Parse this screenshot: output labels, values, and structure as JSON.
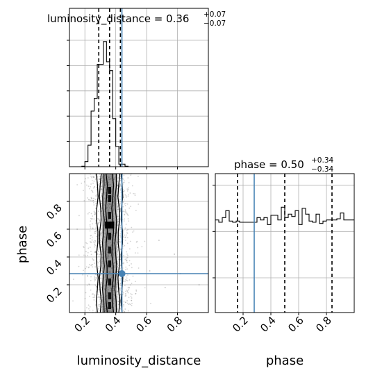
{
  "chart_data": [
    {
      "type": "histogram",
      "panel": "luminosity_distance marginal",
      "title": {
        "main": "luminosity_distance = 0.36",
        "sup": "+0.07",
        "sub": "−0.07"
      },
      "x_range": [
        0.1,
        1.0
      ],
      "bin_edges": [
        0.1,
        0.12,
        0.14,
        0.16,
        0.18,
        0.2,
        0.22,
        0.24,
        0.26,
        0.28,
        0.3,
        0.32,
        0.34,
        0.36,
        0.38,
        0.4,
        0.42,
        0.44,
        0.46,
        0.48,
        0.5,
        0.52,
        0.54,
        0.56,
        0.58,
        0.6,
        0.62,
        0.64,
        0.66,
        0.68,
        0.7,
        0.72,
        0.74,
        0.76,
        0.78,
        0.8,
        0.82,
        0.84,
        0.86,
        0.88,
        0.9,
        0.92,
        0.94,
        0.96,
        0.98,
        1.0
      ],
      "counts": [
        0,
        0,
        0,
        0,
        0.004,
        0.04,
        0.17,
        0.44,
        0.54,
        0.81,
        0.81,
        0.99,
        0.83,
        0.76,
        0.38,
        0.16,
        0.02,
        0.02,
        0.004,
        0,
        0,
        0,
        0,
        0,
        0,
        0,
        0,
        0,
        0,
        0,
        0,
        0,
        0,
        0,
        0,
        0,
        0,
        0,
        0,
        0,
        0,
        0,
        0,
        0,
        0
      ],
      "quantiles": [
        0.29,
        0.36,
        0.43
      ],
      "truth": 0.44,
      "y_ticks_count": 5,
      "x_ticks": [
        0.2,
        0.4,
        0.6,
        0.8
      ],
      "grid": true
    },
    {
      "type": "scatter_density",
      "panel": "phase vs luminosity_distance",
      "x": "luminosity_distance",
      "y": "phase",
      "x_range": [
        0.1,
        1.0
      ],
      "y_range": [
        0.0,
        1.0
      ],
      "x_ticks": [
        0.2,
        0.4,
        0.6,
        0.8
      ],
      "y_ticks": [
        0.2,
        0.4,
        0.6,
        0.8
      ],
      "x_tick_labels": [
        "0.2",
        "0.4",
        "0.6",
        "0.8"
      ],
      "y_tick_labels": [
        "0.2",
        "0.4",
        "0.6",
        "0.8"
      ],
      "xlabel": "luminosity_distance",
      "ylabel": "phase",
      "truth": {
        "x": 0.44,
        "y": 0.28
      },
      "density_cells": [
        {
          "x": 0.36,
          "y": 0.63,
          "level": 1.0
        },
        {
          "x": 0.34,
          "y": 0.63,
          "level": 0.95
        },
        {
          "x": 0.38,
          "y": 0.63,
          "level": 0.9
        },
        {
          "x": 0.36,
          "y": 0.88,
          "level": 0.85
        },
        {
          "x": 0.36,
          "y": 0.82,
          "level": 0.75
        },
        {
          "x": 0.36,
          "y": 0.7,
          "level": 0.7
        },
        {
          "x": 0.36,
          "y": 0.55,
          "level": 0.7
        },
        {
          "x": 0.36,
          "y": 0.45,
          "level": 0.65
        },
        {
          "x": 0.36,
          "y": 0.35,
          "level": 0.7
        },
        {
          "x": 0.36,
          "y": 0.22,
          "level": 0.72
        },
        {
          "x": 0.36,
          "y": 0.12,
          "level": 0.68
        },
        {
          "x": 0.36,
          "y": 0.05,
          "level": 0.7
        }
      ],
      "grid": true
    },
    {
      "type": "histogram",
      "panel": "phase marginal",
      "title": {
        "main": "phase = 0.50",
        "sup": "+0.34",
        "sub": "−0.34"
      },
      "x_range": [
        0.0,
        1.0
      ],
      "bin_edges": [
        0.0,
        0.025,
        0.05,
        0.075,
        0.1,
        0.125,
        0.15,
        0.175,
        0.2,
        0.225,
        0.25,
        0.275,
        0.3,
        0.325,
        0.35,
        0.375,
        0.4,
        0.425,
        0.45,
        0.475,
        0.5,
        0.525,
        0.55,
        0.575,
        0.6,
        0.625,
        0.65,
        0.675,
        0.7,
        0.725,
        0.75,
        0.775,
        0.8,
        0.825,
        0.85,
        0.875,
        0.9,
        0.925,
        0.95,
        0.975,
        1.0
      ],
      "counts": [
        0.8,
        0.78,
        0.82,
        0.88,
        0.79,
        0.78,
        0.79,
        0.78,
        0.78,
        0.78,
        0.78,
        0.78,
        0.82,
        0.8,
        0.82,
        0.76,
        0.84,
        0.84,
        0.8,
        0.91,
        0.82,
        0.85,
        0.83,
        0.88,
        0.76,
        0.9,
        0.85,
        0.79,
        0.78,
        0.85,
        0.77,
        0.79,
        0.8,
        0.8,
        0.8,
        0.81,
        0.86,
        0.8,
        0.8,
        0.8
      ],
      "quantiles": [
        0.16,
        0.5,
        0.84
      ],
      "truth": 0.28,
      "x_ticks": [
        0.2,
        0.4,
        0.6,
        0.8
      ],
      "x_tick_labels": [
        "0.2",
        "0.4",
        "0.6",
        "0.8"
      ],
      "xlabel": "phase",
      "grid": true
    }
  ],
  "colors": {
    "truth": "#4682b4",
    "hist": "#000000",
    "grid": "#b0b0b0",
    "scatter": "#808080"
  }
}
